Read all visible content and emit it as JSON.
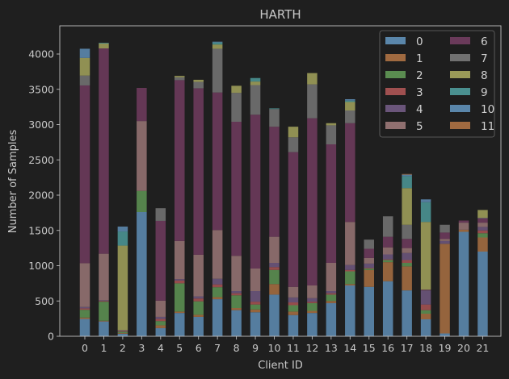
{
  "chart_data": {
    "type": "bar",
    "stacked": true,
    "title": "HARTH",
    "xlabel": "Client ID",
    "ylabel": "Number of Samples",
    "categories": [
      "0",
      "1",
      "2",
      "3",
      "4",
      "5",
      "6",
      "7",
      "8",
      "9",
      "10",
      "11",
      "12",
      "13",
      "14",
      "15",
      "16",
      "17",
      "18",
      "19",
      "20",
      "21"
    ],
    "yticks": [
      0,
      500,
      1000,
      1500,
      2000,
      2500,
      3000,
      3500,
      4000
    ],
    "ylim": [
      0,
      4400
    ],
    "legend": {
      "position": "top-right",
      "columns": 2
    },
    "series": [
      {
        "name": "0",
        "color": "#5a86aa",
        "values": [
          245,
          210,
          35,
          1760,
          115,
          330,
          275,
          525,
          370,
          340,
          590,
          300,
          330,
          470,
          720,
          700,
          780,
          650,
          240,
          40,
          1480,
          1200
        ]
      },
      {
        "name": "1",
        "color": "#a06a40",
        "values": [
          20,
          10,
          10,
          0,
          40,
          20,
          30,
          30,
          30,
          40,
          150,
          50,
          30,
          30,
          20,
          240,
          270,
          340,
          80,
          1270,
          30,
          200
        ]
      },
      {
        "name": "2",
        "color": "#5a8c50",
        "values": [
          110,
          270,
          20,
          300,
          60,
          400,
          190,
          140,
          180,
          70,
          200,
          90,
          110,
          90,
          180,
          20,
          30,
          50,
          50,
          0,
          0,
          60
        ]
      },
      {
        "name": "3",
        "color": "#a05050",
        "values": [
          20,
          10,
          10,
          0,
          30,
          40,
          40,
          40,
          30,
          40,
          40,
          40,
          20,
          20,
          20,
          10,
          10,
          40,
          80,
          0,
          0,
          40
        ]
      },
      {
        "name": "4",
        "color": "#6a557a",
        "values": [
          20,
          10,
          10,
          0,
          30,
          20,
          30,
          80,
          30,
          150,
          60,
          70,
          50,
          30,
          70,
          60,
          70,
          100,
          200,
          40,
          0,
          50
        ]
      },
      {
        "name": "5",
        "color": "#907070",
        "values": [
          620,
          660,
          0,
          990,
          230,
          540,
          590,
          690,
          500,
          320,
          370,
          150,
          180,
          400,
          610,
          80,
          100,
          70,
          0,
          30,
          100,
          60
        ]
      },
      {
        "name": "6",
        "color": "#6a3a5a",
        "values": [
          2520,
          2910,
          0,
          470,
          1130,
          2280,
          2360,
          1950,
          1900,
          2180,
          1560,
          1910,
          2370,
          1680,
          1400,
          130,
          150,
          130,
          10,
          90,
          30,
          60
        ]
      },
      {
        "name": "7",
        "color": "#707070",
        "values": [
          140,
          0,
          0,
          0,
          180,
          40,
          90,
          620,
          410,
          420,
          250,
          210,
          480,
          270,
          180,
          130,
          290,
          200,
          0,
          110,
          0,
          10
        ]
      },
      {
        "name": "8",
        "color": "#9a9a58",
        "values": [
          250,
          70,
          1200,
          0,
          0,
          20,
          30,
          60,
          100,
          50,
          0,
          150,
          160,
          30,
          120,
          0,
          0,
          520,
          960,
          0,
          0,
          110
        ]
      },
      {
        "name": "9",
        "color": "#4a9090",
        "values": [
          0,
          10,
          200,
          0,
          0,
          0,
          0,
          30,
          0,
          50,
          10,
          0,
          0,
          0,
          20,
          0,
          0,
          170,
          280,
          0,
          0,
          0
        ]
      },
      {
        "name": "10",
        "color": "#5a86aa",
        "values": [
          130,
          0,
          70,
          0,
          0,
          0,
          0,
          10,
          0,
          0,
          0,
          0,
          0,
          0,
          20,
          0,
          0,
          20,
          40,
          0,
          0,
          0
        ]
      },
      {
        "name": "11",
        "color": "#a06a40",
        "values": [
          0,
          0,
          0,
          0,
          0,
          0,
          0,
          0,
          0,
          0,
          0,
          0,
          0,
          0,
          0,
          0,
          0,
          10,
          0,
          0,
          0,
          0
        ]
      }
    ]
  }
}
